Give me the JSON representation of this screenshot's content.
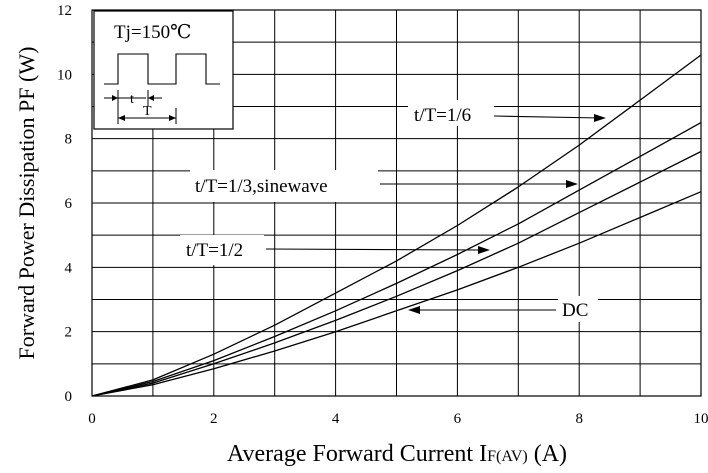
{
  "chart_data": {
    "type": "line",
    "title": "",
    "xlabel": "Average Forward Current I",
    "xlabel_sub": "F(AV)",
    "xlabel_unit": "(A)",
    "ylabel": "Forward Power Dissipation PF (W)",
    "xlim": [
      0,
      10
    ],
    "ylim": [
      0,
      12
    ],
    "x_ticks": [
      0,
      2,
      4,
      6,
      8,
      10
    ],
    "x_tick_labels": [
      "0",
      "2",
      "4",
      "6",
      "8",
      "10"
    ],
    "y_ticks": [
      0,
      2,
      4,
      6,
      8,
      10,
      12
    ],
    "y_tick_labels": [
      "0",
      "2",
      "4",
      "6",
      "8",
      "10",
      "12"
    ],
    "grid": true,
    "series": [
      {
        "name": "t/T=1/6",
        "x": [
          0,
          1,
          2,
          3,
          4,
          5,
          6,
          7,
          8,
          9,
          10
        ],
        "y": [
          0,
          0.5,
          1.3,
          2.2,
          3.2,
          4.2,
          5.3,
          6.5,
          7.8,
          9.2,
          10.6
        ]
      },
      {
        "name": "t/T=1/3,sinewave",
        "x": [
          0,
          1,
          2,
          3,
          4,
          5,
          6,
          7,
          8,
          9,
          10
        ],
        "y": [
          0,
          0.45,
          1.1,
          1.85,
          2.65,
          3.5,
          4.4,
          5.35,
          6.4,
          7.45,
          8.5
        ]
      },
      {
        "name": "t/T=1/2",
        "x": [
          0,
          1,
          2,
          3,
          4,
          5,
          6,
          7,
          8,
          9,
          10
        ],
        "y": [
          0,
          0.4,
          1.0,
          1.65,
          2.35,
          3.1,
          3.9,
          4.75,
          5.7,
          6.65,
          7.6
        ]
      },
      {
        "name": "DC",
        "x": [
          0,
          1,
          2,
          3,
          4,
          5,
          6,
          7,
          8,
          9,
          10
        ],
        "y": [
          0,
          0.35,
          0.85,
          1.4,
          2.0,
          2.65,
          3.3,
          4.0,
          4.75,
          5.55,
          6.35
        ]
      }
    ],
    "annotations": [
      {
        "text": "t/T=1/6",
        "target_series": "t/T=1/6"
      },
      {
        "text": "t/T=1/3,sinewave",
        "target_series": "t/T=1/3,sinewave"
      },
      {
        "text": "t/T=1/2",
        "target_series": "t/T=1/2"
      },
      {
        "text": "DC",
        "target_series": "DC"
      }
    ],
    "inset": {
      "condition": "Tj=150℃",
      "t_label": "t",
      "T_label": "T"
    }
  }
}
